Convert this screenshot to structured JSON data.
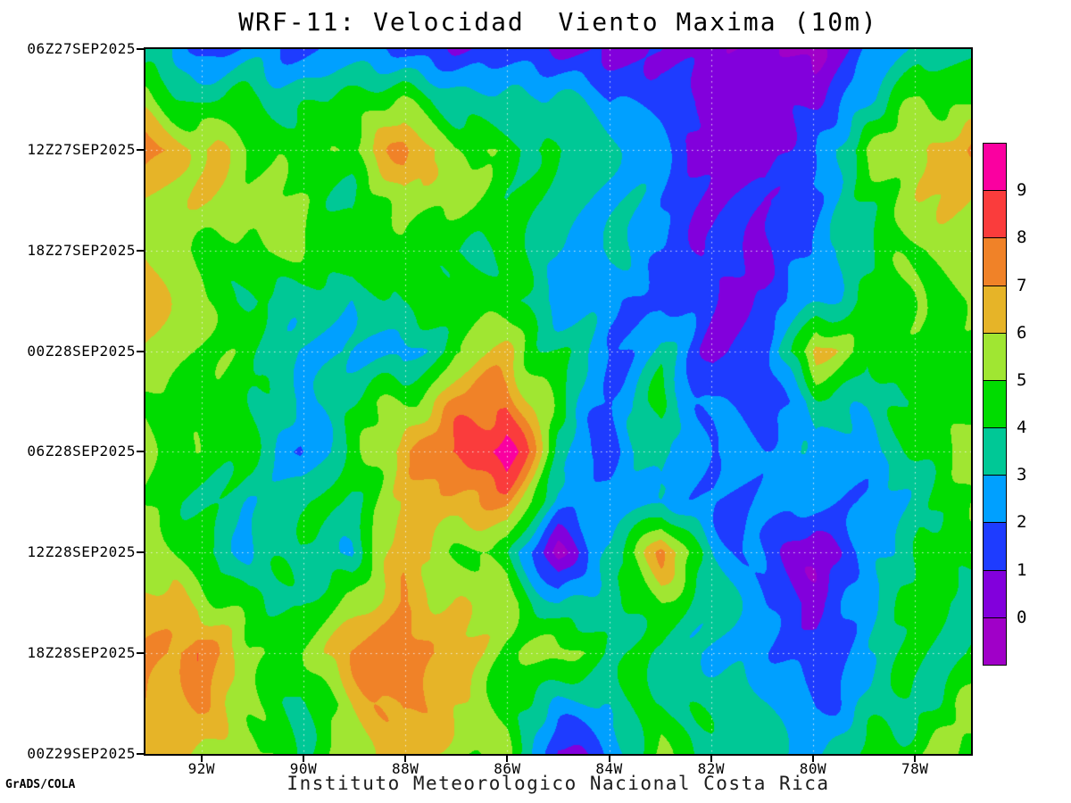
{
  "header": {
    "title": "WRF-11: Velocidad  Viento Maxima (10m)"
  },
  "footer": {
    "credit": "GrADS/COLA",
    "caption": "Instituto Meteorologico Nacional Costa Rica"
  },
  "chart_data": {
    "type": "heatmap",
    "title": "WRF-11: Velocidad  Viento Maxima (10m)",
    "legend_position": "right",
    "grid_dotted": true,
    "x_axis": {
      "tick_labels": [
        "92W",
        "90W",
        "88W",
        "86W",
        "84W",
        "82W",
        "80W",
        "78W"
      ],
      "tick_lons_west": [
        92,
        90,
        88,
        86,
        84,
        82,
        80,
        78
      ],
      "lon_west_edge": 93.1,
      "lon_east_edge": 76.9
    },
    "y_axis": {
      "tick_labels": [
        "06Z27SEP2025",
        "12Z27SEP2025",
        "18Z27SEP2025",
        "00Z28SEP2025",
        "06Z28SEP2025",
        "12Z28SEP2025",
        "18Z28SEP2025",
        "00Z29SEP2025"
      ],
      "direction": "time increases downward"
    },
    "colorbar": {
      "labels_top_to_bottom": [
        "9",
        "8",
        "7",
        "6",
        "5",
        "4",
        "3",
        "2",
        "1",
        "0"
      ],
      "levels_low_to_high": [
        0,
        1,
        2,
        3,
        4,
        5,
        6,
        7,
        8,
        9
      ],
      "band_colors_low_to_high": [
        "#A000C8",
        "#8200DC",
        "#1E3CFF",
        "#00A0FF",
        "#00C896",
        "#00DC00",
        "#A0E632",
        "#E6B428",
        "#F08228",
        "#FA3C3C",
        "#FA00A0"
      ]
    },
    "grid": {
      "lons_west": [
        93,
        92,
        91,
        90,
        89,
        88,
        87,
        86,
        85,
        84,
        83,
        82,
        81,
        80,
        79,
        78,
        77
      ],
      "times": [
        "06Z27SEP2025",
        "09Z27SEP2025",
        "12Z27SEP2025",
        "15Z27SEP2025",
        "18Z27SEP2025",
        "21Z27SEP2025",
        "00Z28SEP2025",
        "03Z28SEP2025",
        "06Z28SEP2025",
        "09Z28SEP2025",
        "12Z28SEP2025",
        "15Z28SEP2025",
        "18Z28SEP2025",
        "21Z28SEP2025",
        "00Z29SEP2025"
      ],
      "values": [
        [
          3,
          2,
          2,
          2,
          2,
          2,
          1,
          1,
          1,
          1,
          1,
          0,
          0,
          0,
          2,
          3,
          4
        ],
        [
          5,
          4,
          4,
          4,
          4,
          5,
          4,
          3,
          3,
          2,
          2,
          1,
          0,
          1,
          3,
          5,
          5
        ],
        [
          8,
          6,
          5,
          5,
          5,
          7,
          5,
          5,
          4,
          3,
          2,
          1,
          0,
          2,
          5,
          6,
          7
        ],
        [
          6,
          6,
          5,
          5,
          4,
          6,
          5,
          4,
          4,
          3,
          2,
          1,
          1,
          2,
          4,
          6,
          6
        ],
        [
          6,
          5,
          5,
          5,
          4,
          5,
          4,
          4,
          3,
          3,
          2,
          1,
          1,
          2,
          4,
          5,
          6
        ],
        [
          6,
          5,
          4,
          4,
          3,
          4,
          5,
          4,
          3,
          2,
          2,
          1,
          1,
          3,
          4,
          5,
          5
        ],
        [
          6,
          5,
          4,
          3,
          3,
          2,
          5,
          6,
          4,
          2,
          3,
          1,
          1,
          7,
          4,
          5,
          5
        ],
        [
          5,
          5,
          4,
          3,
          4,
          5,
          7,
          8,
          4,
          2,
          4,
          2,
          1,
          4,
          3,
          4,
          5
        ],
        [
          5,
          5,
          4,
          2,
          4,
          7,
          8,
          10,
          4,
          1,
          4,
          2,
          2,
          3,
          3,
          4,
          5
        ],
        [
          5,
          4,
          3,
          4,
          4,
          6,
          7,
          7,
          3,
          2,
          3,
          2,
          2,
          2,
          2,
          4,
          5
        ],
        [
          6,
          4,
          3,
          4,
          3,
          7,
          5,
          4,
          0,
          3,
          7,
          3,
          2,
          0,
          2,
          4,
          5
        ],
        [
          6,
          6,
          4,
          4,
          5,
          7,
          6,
          5,
          3,
          4,
          5,
          3,
          2,
          1,
          3,
          4,
          4
        ],
        [
          7,
          8,
          5,
          5,
          7,
          8,
          7,
          5,
          5,
          4,
          4,
          3,
          2,
          1,
          3,
          4,
          4
        ],
        [
          7,
          7,
          5,
          4,
          6,
          7,
          6,
          5,
          3,
          3,
          4,
          4,
          3,
          2,
          3,
          4,
          5
        ],
        [
          7,
          6,
          5,
          4,
          6,
          7,
          5,
          5,
          1,
          2,
          5,
          4,
          3,
          3,
          4,
          5,
          5
        ]
      ]
    }
  }
}
